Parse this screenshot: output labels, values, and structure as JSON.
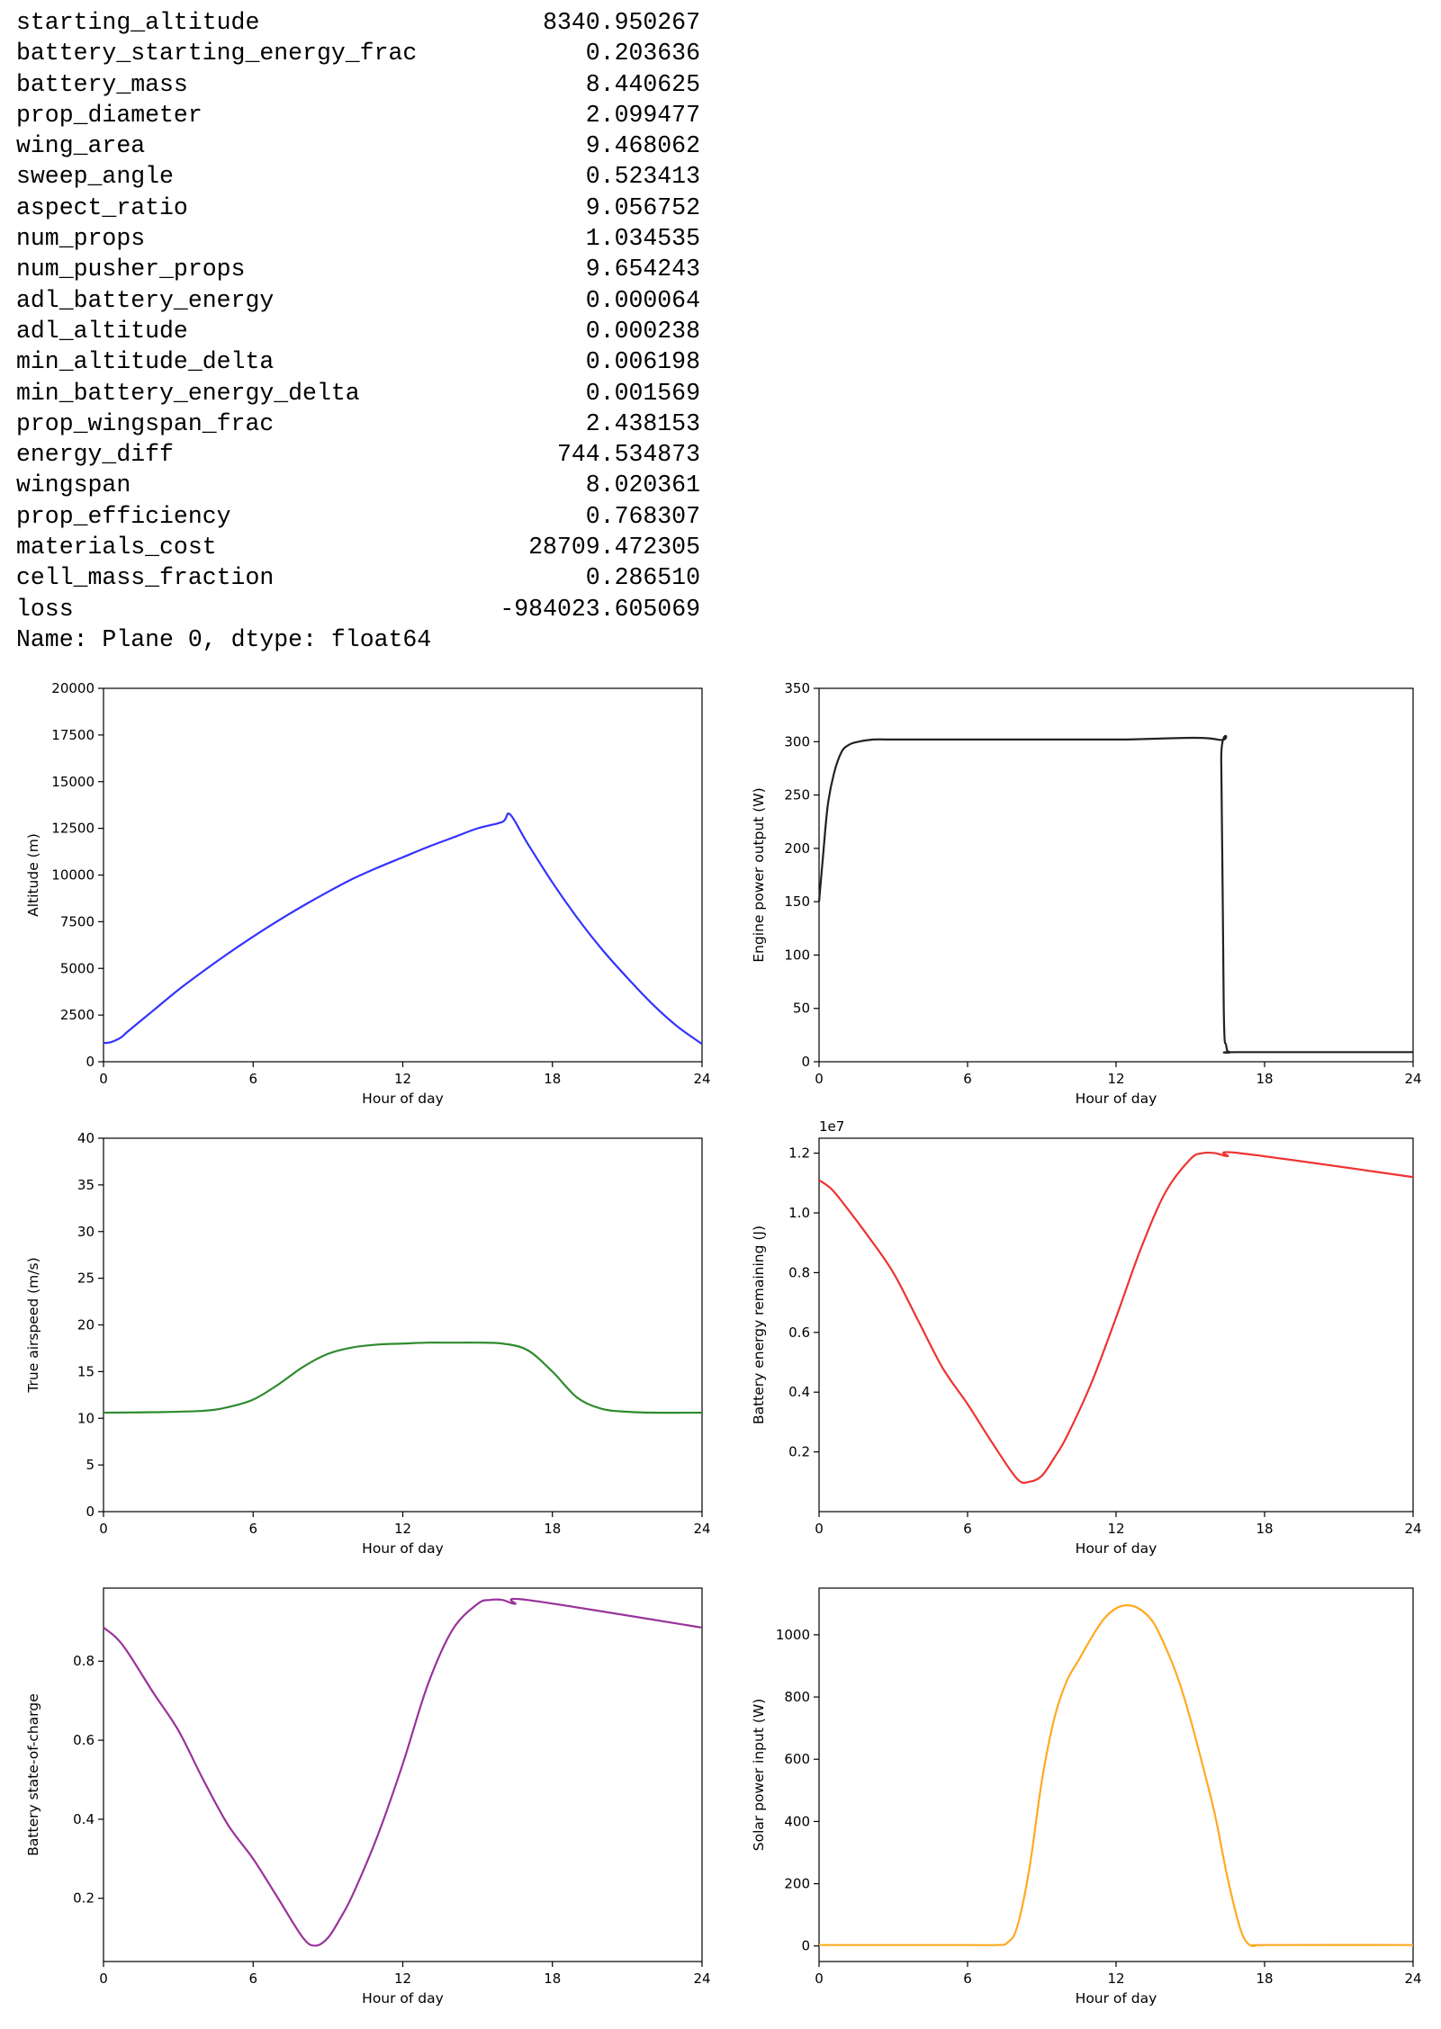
{
  "series_output": {
    "rows": [
      {
        "key": "starting_altitude",
        "value": "8340.950267"
      },
      {
        "key": "battery_starting_energy_frac",
        "value": "0.203636"
      },
      {
        "key": "battery_mass",
        "value": "8.440625"
      },
      {
        "key": "prop_diameter",
        "value": "2.099477"
      },
      {
        "key": "wing_area",
        "value": "9.468062"
      },
      {
        "key": "sweep_angle",
        "value": "0.523413"
      },
      {
        "key": "aspect_ratio",
        "value": "9.056752"
      },
      {
        "key": "num_props",
        "value": "1.034535"
      },
      {
        "key": "num_pusher_props",
        "value": "9.654243"
      },
      {
        "key": "adl_battery_energy",
        "value": "0.000064"
      },
      {
        "key": "adl_altitude",
        "value": "0.000238"
      },
      {
        "key": "min_altitude_delta",
        "value": "0.006198"
      },
      {
        "key": "min_battery_energy_delta",
        "value": "0.001569"
      },
      {
        "key": "prop_wingspan_frac",
        "value": "2.438153"
      },
      {
        "key": "energy_diff",
        "value": "744.534873"
      },
      {
        "key": "wingspan",
        "value": "8.020361"
      },
      {
        "key": "prop_efficiency",
        "value": "0.768307"
      },
      {
        "key": "materials_cost",
        "value": "28709.472305"
      },
      {
        "key": "cell_mass_fraction",
        "value": "0.286510"
      },
      {
        "key": "loss",
        "value": "-984023.605069"
      }
    ],
    "footer_name_label": "Name:",
    "footer_name_value": "Plane 0,",
    "footer_dtype_label": "dtype:",
    "footer_dtype_value": "float64"
  },
  "chart_data": [
    {
      "type": "line",
      "xlabel": "Hour of day",
      "ylabel": "Altitude (m)",
      "xlim": [
        0,
        24
      ],
      "ylim": [
        0,
        20000
      ],
      "xticks": [
        "0",
        "6",
        "12",
        "18",
        "24"
      ],
      "yticks": [
        "0",
        "2500",
        "5000",
        "7500",
        "10000",
        "12500",
        "15000",
        "17500",
        "20000"
      ],
      "color": "#3333ff",
      "series": [
        {
          "x": [
            0,
            0.3,
            0.7,
            1,
            2,
            3,
            4,
            5,
            6,
            7,
            8,
            9,
            10,
            11,
            12,
            13,
            14,
            15,
            16,
            16.3,
            17,
            18,
            19,
            20,
            21,
            22,
            23,
            24
          ],
          "y": [
            1000,
            1050,
            1300,
            1650,
            2750,
            3850,
            4850,
            5800,
            6700,
            7550,
            8350,
            9100,
            9800,
            10400,
            10950,
            11500,
            12000,
            12500,
            12850,
            13250,
            11700,
            9600,
            7700,
            6000,
            4500,
            3100,
            1900,
            950
          ]
        }
      ]
    },
    {
      "type": "line",
      "xlabel": "Hour of day",
      "ylabel": "Engine power output (W)",
      "xlim": [
        0,
        24
      ],
      "ylim": [
        0,
        350
      ],
      "xticks": [
        "0",
        "6",
        "12",
        "18",
        "24"
      ],
      "yticks": [
        "0",
        "50",
        "100",
        "150",
        "200",
        "250",
        "300",
        "350"
      ],
      "color": "#222222",
      "series": [
        {
          "x": [
            0,
            0.15,
            0.35,
            0.6,
            0.9,
            1.2,
            1.6,
            2.2,
            3,
            6,
            12,
            16.1,
            16.25,
            16.35,
            16.45,
            16.6,
            17,
            24
          ],
          "y": [
            150,
            190,
            240,
            270,
            290,
            297,
            300,
            302,
            302,
            302,
            302,
            302,
            280,
            50,
            15,
            9,
            9,
            9
          ]
        }
      ]
    },
    {
      "type": "line",
      "xlabel": "Hour of day",
      "ylabel": "True airspeed (m/s)",
      "xlim": [
        0,
        24
      ],
      "ylim": [
        0,
        40
      ],
      "xticks": [
        "0",
        "6",
        "12",
        "18",
        "24"
      ],
      "yticks": [
        "0",
        "5",
        "10",
        "15",
        "20",
        "25",
        "30",
        "35",
        "40"
      ],
      "color": "#2e8b2e",
      "series": [
        {
          "x": [
            0,
            2,
            4,
            5,
            6,
            7,
            8,
            9,
            10,
            11,
            12,
            13,
            14,
            15,
            16,
            17,
            18,
            19,
            20,
            21,
            22,
            24
          ],
          "y": [
            10.6,
            10.65,
            10.8,
            11.2,
            12.0,
            13.6,
            15.5,
            16.9,
            17.6,
            17.9,
            18.0,
            18.1,
            18.1,
            18.1,
            18.0,
            17.3,
            15.0,
            12.2,
            11.0,
            10.7,
            10.6,
            10.6
          ]
        }
      ]
    },
    {
      "type": "line",
      "xlabel": "Hour of day",
      "ylabel": "Battery energy remaining (J)",
      "offset_label": "1e7",
      "xlim": [
        0,
        24
      ],
      "ylim": [
        0,
        1.25
      ],
      "xticks": [
        "0",
        "6",
        "12",
        "18",
        "24"
      ],
      "yticks": [
        "0.2",
        "0.4",
        "0.6",
        "0.8",
        "1.0",
        "1.2"
      ],
      "color": "#ee3333",
      "series": [
        {
          "x": [
            0,
            0.5,
            1,
            2,
            3,
            4,
            5,
            6,
            7,
            8,
            8.5,
            9,
            9.5,
            10,
            11,
            12,
            13,
            14,
            15,
            15.5,
            16,
            16.5,
            17,
            24
          ],
          "y": [
            1.11,
            1.08,
            1.03,
            0.92,
            0.8,
            0.64,
            0.48,
            0.36,
            0.23,
            0.11,
            0.1,
            0.12,
            0.18,
            0.25,
            0.43,
            0.65,
            0.88,
            1.07,
            1.18,
            1.2,
            1.2,
            1.19,
            1.2,
            1.12
          ]
        }
      ]
    },
    {
      "type": "line",
      "xlabel": "Hour of day",
      "ylabel": "Battery state-of-charge",
      "xlim": [
        0,
        24
      ],
      "ylim": [
        0.04,
        0.985
      ],
      "xticks": [
        "0",
        "6",
        "12",
        "18",
        "24"
      ],
      "yticks": [
        "0.2",
        "0.4",
        "0.6",
        "0.8"
      ],
      "color": "#993399",
      "series": [
        {
          "x": [
            0,
            0.5,
            1,
            2,
            3,
            4,
            5,
            6,
            7,
            8,
            8.5,
            9,
            9.5,
            10,
            11,
            12,
            13,
            14,
            15,
            15.5,
            16,
            16.5,
            17,
            24
          ],
          "y": [
            0.885,
            0.86,
            0.82,
            0.72,
            0.625,
            0.5,
            0.385,
            0.3,
            0.2,
            0.1,
            0.08,
            0.1,
            0.15,
            0.21,
            0.36,
            0.54,
            0.74,
            0.88,
            0.945,
            0.955,
            0.955,
            0.945,
            0.955,
            0.885
          ]
        }
      ]
    },
    {
      "type": "line",
      "xlabel": "Hour of day",
      "ylabel": "Solar power input (W)",
      "xlim": [
        0,
        24
      ],
      "ylim": [
        -50,
        1150
      ],
      "xticks": [
        "0",
        "6",
        "12",
        "18",
        "24"
      ],
      "yticks": [
        "0",
        "200",
        "400",
        "600",
        "800",
        "1000"
      ],
      "color": "#ffaa22",
      "series": [
        {
          "x": [
            0,
            6,
            7.2,
            7.6,
            8,
            8.5,
            9,
            9.5,
            10,
            10.5,
            11,
            11.5,
            12,
            12.5,
            13,
            13.5,
            14,
            14.5,
            15,
            15.5,
            16,
            16.5,
            17,
            17.3,
            17.6,
            18,
            24
          ],
          "y": [
            3,
            3,
            3,
            10,
            60,
            250,
            530,
            730,
            850,
            920,
            990,
            1050,
            1085,
            1095,
            1080,
            1040,
            960,
            860,
            730,
            580,
            420,
            220,
            60,
            10,
            0,
            3,
            3
          ]
        }
      ]
    }
  ]
}
